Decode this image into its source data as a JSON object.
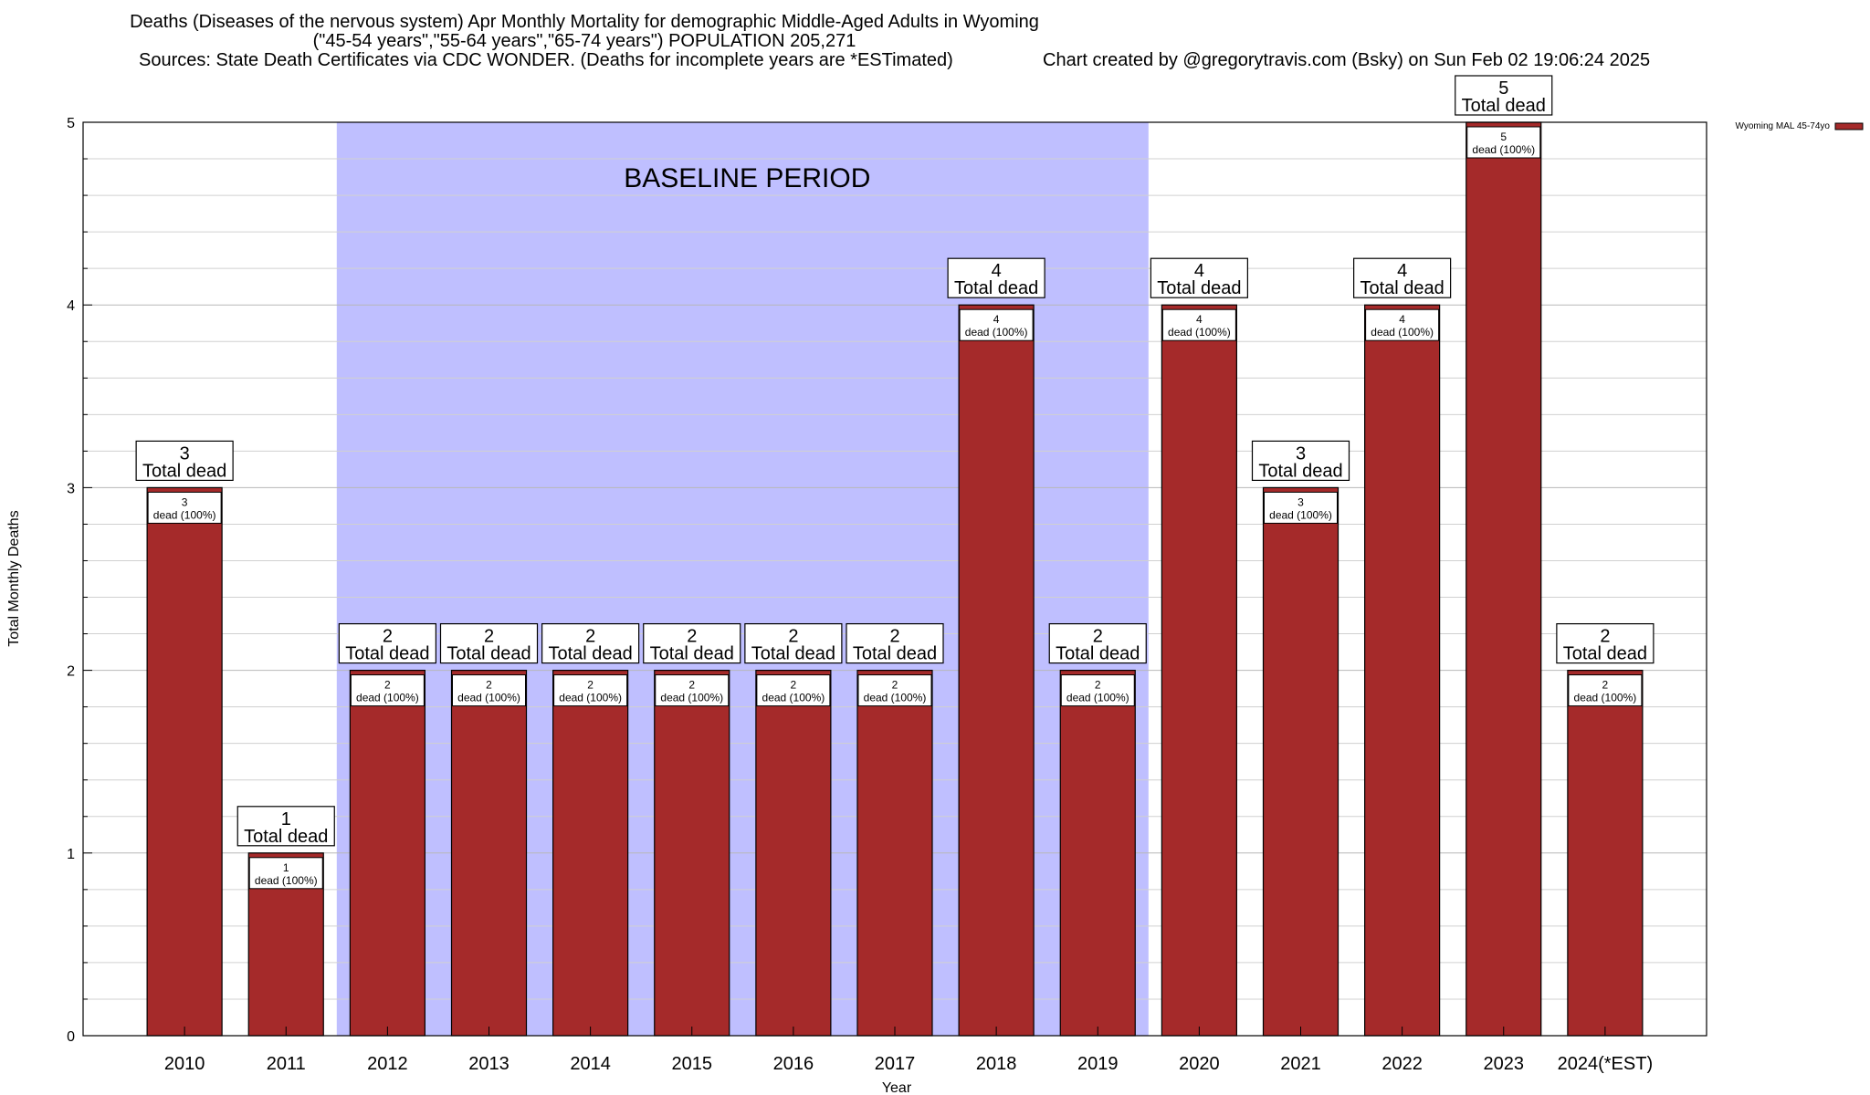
{
  "chart_data": {
    "type": "bar",
    "title_lines": [
      "Deaths (Diseases of the nervous system) Apr Monthly Mortality for demographic Middle-Aged Adults in Wyoming",
      "(\"45-54 years\",\"55-64 years\",\"65-74 years\") POPULATION 205,271"
    ],
    "sources": "Sources: State Death Certificates via CDC WONDER. (Deaths for incomplete years are *ESTimated)",
    "credit": "Chart created by @gregorytravis.com (Bsky) on Sun Feb 02 19:06:24 2025",
    "xlabel": "Year",
    "ylabel": "Total Monthly Deaths",
    "ylim": [
      0,
      5
    ],
    "y_ticks": [
      0,
      1,
      2,
      3,
      4,
      5
    ],
    "grid": "horizontal",
    "categories": [
      "2010",
      "2011",
      "2012",
      "2013",
      "2014",
      "2015",
      "2016",
      "2017",
      "2018",
      "2019",
      "2020",
      "2021",
      "2022",
      "2023",
      "2024(*EST)"
    ],
    "series": [
      {
        "name": "Wyoming MAL 45-74yo",
        "color": "#a52a2a",
        "values": [
          3,
          1,
          2,
          2,
          2,
          2,
          2,
          2,
          4,
          2,
          4,
          3,
          4,
          5,
          2
        ]
      }
    ],
    "total_label": "Total dead",
    "inner_label_suffix": "dead (100%)",
    "baseline": {
      "label": "BASELINE PERIOD",
      "from": "2012",
      "to": "2019",
      "color": "#bfbfff"
    },
    "legend_position": "top-right"
  }
}
